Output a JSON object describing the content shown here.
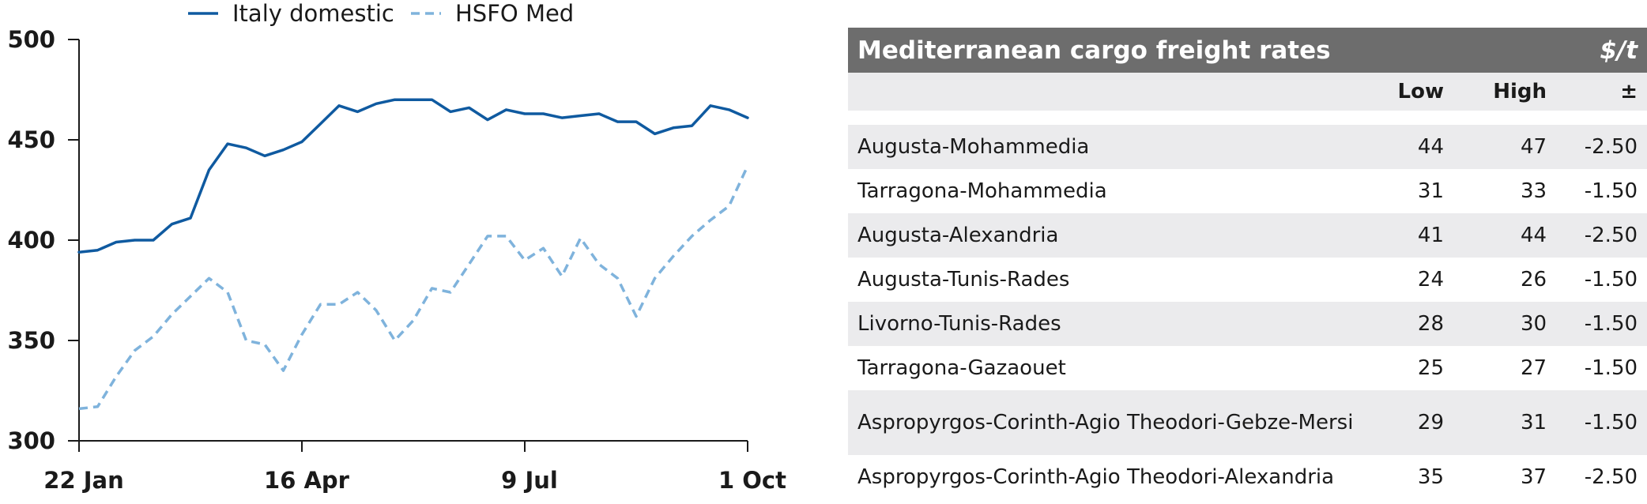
{
  "chart_data": {
    "type": "line",
    "x_ticks": [
      "22 Jan",
      "16 Apr",
      "9 Jul",
      "1 Oct"
    ],
    "ylim": [
      300,
      500
    ],
    "y_ticks": [
      300,
      350,
      400,
      450,
      500
    ],
    "legend_position": "top",
    "series": [
      {
        "name": "Italy domestic",
        "color": "#0f5aa0",
        "style": "solid",
        "values": [
          394,
          395,
          399,
          400,
          400,
          408,
          411,
          435,
          448,
          446,
          442,
          445,
          449,
          458,
          467,
          464,
          468,
          470,
          470,
          470,
          464,
          466,
          460,
          465,
          463,
          463,
          461,
          462,
          463,
          459,
          459,
          453,
          456,
          457,
          467,
          465,
          461
        ]
      },
      {
        "name": "HSFO Med",
        "color": "#7fb3dc",
        "style": "dashed",
        "values": [
          316,
          317,
          332,
          345,
          352,
          363,
          372,
          381,
          374,
          350,
          348,
          335,
          353,
          368,
          368,
          374,
          365,
          350,
          360,
          376,
          374,
          388,
          402,
          402,
          390,
          396,
          382,
          401,
          388,
          381,
          362,
          381,
          392,
          402,
          410,
          417,
          437
        ]
      }
    ]
  },
  "table": {
    "title": "Mediterranean cargo freight rates",
    "unit": "$/t",
    "columns": [
      "",
      "Low",
      "High",
      "±"
    ],
    "rows": [
      [
        "Augusta-Mohammedia",
        "44",
        "47",
        "-2.50"
      ],
      [
        "Tarragona-Mohammedia",
        "31",
        "33",
        "-1.50"
      ],
      [
        "Augusta-Alexandria",
        "41",
        "44",
        "-2.50"
      ],
      [
        "Augusta-Tunis-Rades",
        "24",
        "26",
        "-1.50"
      ],
      [
        "Livorno-Tunis-Rades",
        "28",
        "30",
        "-1.50"
      ],
      [
        "Tarragona-Gazaouet",
        "25",
        "27",
        "-1.50"
      ],
      [
        "Aspropyrgos-Corinth-Agio Theodori-Gebze-Mersin",
        "29",
        "31",
        "-1.50"
      ],
      [
        "Aspropyrgos-Corinth-Agio Theodori-Alexandria",
        "35",
        "37",
        "-2.50"
      ]
    ]
  }
}
